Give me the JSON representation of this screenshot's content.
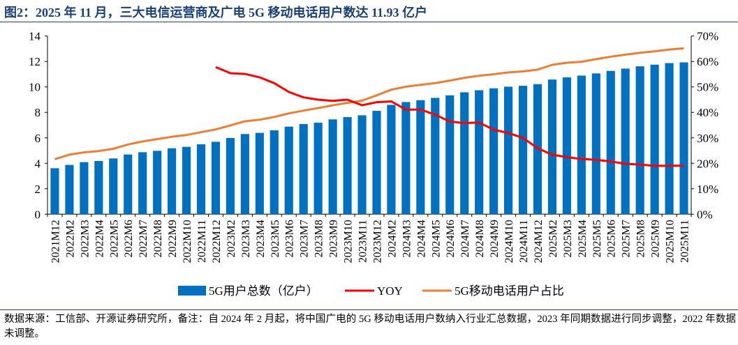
{
  "title": "图2：2025 年 11 月，三大电信运营商及广电 5G 移动电话用户数达 11.93 亿户",
  "footnote": "数据来源：工信部、开源证券研究所，备注：自 2024 年 2 月起，将中国广电的 5G 移动电话用户数纳入行业汇总数据，2023 年同期数据进行同步调整，2022 年数据未调整。",
  "colors": {
    "bars": "#0070C0",
    "yoy": "#FF0000",
    "share": "#ED7D31"
  },
  "chart_data": {
    "type": "bar+line",
    "categories": [
      "2021M12",
      "2022M2",
      "2022M3",
      "2022M4",
      "2022M5",
      "2022M6",
      "2022M7",
      "2022M8",
      "2022M9",
      "2022M10",
      "2022M11",
      "2022M12",
      "2023M2",
      "2023M3",
      "2023M4",
      "2023M5",
      "2023M6",
      "2023M7",
      "2023M8",
      "2023M9",
      "2023M10",
      "2023M11",
      "2023M12",
      "2024M2",
      "2024M3",
      "2024M4",
      "2024M5",
      "2024M6",
      "2024M7",
      "2024M8",
      "2024M9",
      "2024M10",
      "2024M11",
      "2024M12",
      "2025M2",
      "2025M3",
      "2025M4",
      "2025M5",
      "2025M6",
      "2025M7",
      "2025M8",
      "2025M9",
      "2025M10",
      "2025M11"
    ],
    "series": [
      {
        "name": "5G用户总数（亿户）",
        "type": "bar",
        "axis": "left",
        "values": [
          3.61,
          3.87,
          4.09,
          4.18,
          4.38,
          4.69,
          4.87,
          4.98,
          5.18,
          5.29,
          5.49,
          5.69,
          5.99,
          6.3,
          6.39,
          6.59,
          6.88,
          7.08,
          7.19,
          7.45,
          7.63,
          7.77,
          8.12,
          8.59,
          8.81,
          8.96,
          9.14,
          9.34,
          9.58,
          9.74,
          9.89,
          10.02,
          10.09,
          10.22,
          10.58,
          10.75,
          10.89,
          11.06,
          11.26,
          11.44,
          11.62,
          11.75,
          11.87,
          11.93
        ]
      },
      {
        "name": "YOY",
        "type": "line",
        "axis": "right",
        "unit": "%",
        "values": [
          null,
          null,
          null,
          null,
          null,
          null,
          null,
          null,
          null,
          null,
          null,
          57.8,
          55.4,
          55.1,
          53.8,
          51.5,
          48.0,
          45.9,
          45.0,
          44.5,
          45.0,
          42.8,
          44.0,
          44.3,
          41.1,
          41.1,
          39.1,
          36.4,
          35.8,
          36.0,
          33.2,
          31.9,
          30.0,
          25.9,
          23.4,
          22.4,
          21.7,
          21.4,
          20.7,
          19.8,
          19.5,
          19.0,
          19.0,
          19.1
        ]
      },
      {
        "name": "5G移动电话用户占比",
        "type": "line",
        "axis": "right",
        "unit": "%",
        "values": [
          21.6,
          23.4,
          24.3,
          24.8,
          25.7,
          27.4,
          28.6,
          29.5,
          30.4,
          31.1,
          32.2,
          33.3,
          34.9,
          36.5,
          37.1,
          38.2,
          39.6,
          40.7,
          41.7,
          42.8,
          43.7,
          44.6,
          46.7,
          48.9,
          50.1,
          50.8,
          51.5,
          52.5,
          53.6,
          54.4,
          55.0,
          55.7,
          56.1,
          56.8,
          58.7,
          59.5,
          59.9,
          60.9,
          61.9,
          62.7,
          63.4,
          64.0,
          64.7,
          65.2
        ]
      }
    ],
    "y_left": {
      "range": [
        0,
        14
      ],
      "ticks": [
        "0",
        "2",
        "4",
        "6",
        "8",
        "10",
        "12",
        "14"
      ]
    },
    "y_right": {
      "range": [
        0,
        70
      ],
      "ticks": [
        "0%",
        "10%",
        "20%",
        "30%",
        "40%",
        "50%",
        "60%",
        "70%"
      ]
    },
    "grid": false,
    "legend_position": "bottom"
  }
}
